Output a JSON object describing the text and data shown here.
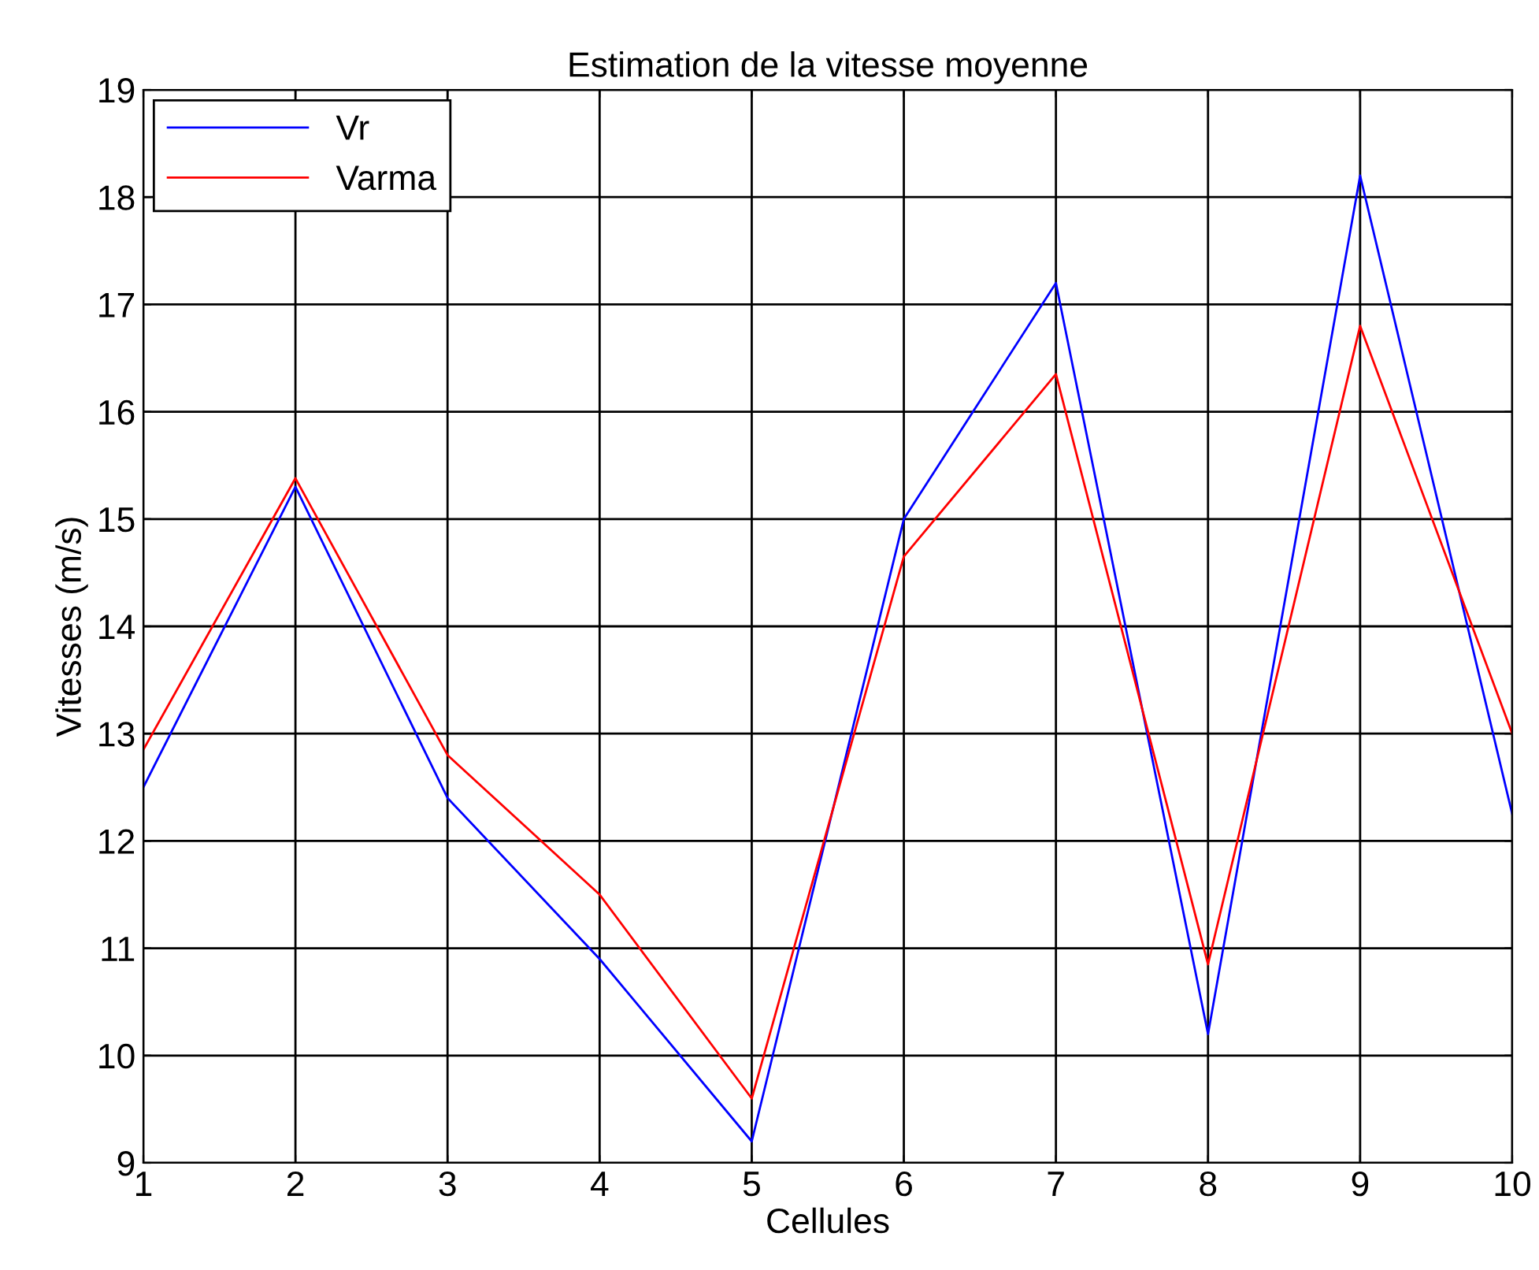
{
  "chart_data": {
    "type": "line",
    "title": "Estimation de la vitesse moyenne",
    "xlabel": "Cellules",
    "ylabel": "Vitesses (m/s)",
    "x": [
      1,
      2,
      3,
      4,
      5,
      6,
      7,
      8,
      9,
      10
    ],
    "series": [
      {
        "name": "Vr",
        "color": "#0000ff",
        "values": [
          12.5,
          15.3,
          12.4,
          10.9,
          9.2,
          15.0,
          17.2,
          10.2,
          18.2,
          12.25
        ]
      },
      {
        "name": "Varma",
        "color": "#ff0000",
        "values": [
          12.85,
          15.38,
          12.8,
          11.5,
          9.6,
          14.65,
          16.35,
          10.85,
          16.8,
          13.0
        ]
      }
    ],
    "xlim": [
      1,
      10
    ],
    "xticks": [
      1,
      2,
      3,
      4,
      5,
      6,
      7,
      8,
      9,
      10
    ],
    "ylim": [
      9,
      19
    ],
    "yticks": [
      9,
      10,
      11,
      12,
      13,
      14,
      15,
      16,
      17,
      18,
      19
    ],
    "grid": true,
    "legend": "top left",
    "marker": "none",
    "line_style": "solid"
  }
}
